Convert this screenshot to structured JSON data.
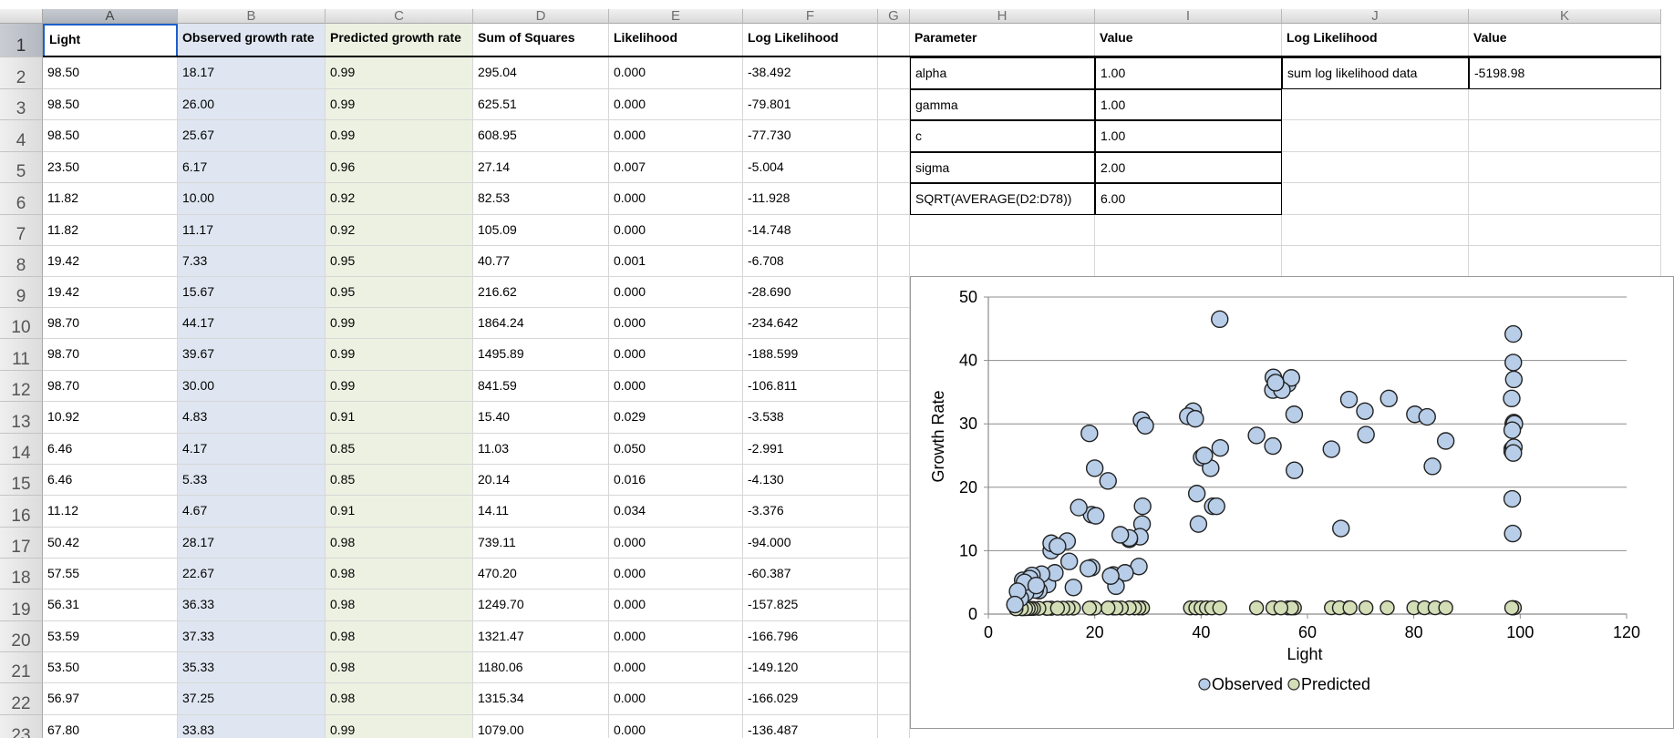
{
  "columns": [
    "A",
    "B",
    "C",
    "D",
    "E",
    "F",
    "G",
    "H",
    "I",
    "J",
    "K"
  ],
  "row_numbers": [
    "1",
    "2",
    "3",
    "4",
    "5",
    "6",
    "7",
    "8",
    "9",
    "10",
    "11",
    "12",
    "13",
    "14",
    "15",
    "16",
    "17",
    "18",
    "19",
    "20",
    "21",
    "22",
    "23"
  ],
  "headers": [
    "Light",
    "Observed growth rate",
    "Predicted growth rate",
    "Sum of Squares",
    "Likelihood",
    "Log Likelihood"
  ],
  "rows": [
    [
      "98.50",
      "18.17",
      "0.99",
      "295.04",
      "0.000",
      "-38.492"
    ],
    [
      "98.50",
      "26.00",
      "0.99",
      "625.51",
      "0.000",
      "-79.801"
    ],
    [
      "98.50",
      "25.67",
      "0.99",
      "608.95",
      "0.000",
      "-77.730"
    ],
    [
      "23.50",
      "6.17",
      "0.96",
      "27.14",
      "0.007",
      "-5.004"
    ],
    [
      "11.82",
      "10.00",
      "0.92",
      "82.53",
      "0.000",
      "-11.928"
    ],
    [
      "11.82",
      "11.17",
      "0.92",
      "105.09",
      "0.000",
      "-14.748"
    ],
    [
      "19.42",
      "7.33",
      "0.95",
      "40.77",
      "0.001",
      "-6.708"
    ],
    [
      "19.42",
      "15.67",
      "0.95",
      "216.62",
      "0.000",
      "-28.690"
    ],
    [
      "98.70",
      "44.17",
      "0.99",
      "1864.24",
      "0.000",
      "-234.642"
    ],
    [
      "98.70",
      "39.67",
      "0.99",
      "1495.89",
      "0.000",
      "-188.599"
    ],
    [
      "98.70",
      "30.00",
      "0.99",
      "841.59",
      "0.000",
      "-106.811"
    ],
    [
      "10.92",
      "4.83",
      "0.91",
      "15.40",
      "0.029",
      "-3.538"
    ],
    [
      "6.46",
      "4.17",
      "0.85",
      "11.03",
      "0.050",
      "-2.991"
    ],
    [
      "6.46",
      "5.33",
      "0.85",
      "20.14",
      "0.016",
      "-4.130"
    ],
    [
      "11.12",
      "4.67",
      "0.91",
      "14.11",
      "0.034",
      "-3.376"
    ],
    [
      "50.42",
      "28.17",
      "0.98",
      "739.11",
      "0.000",
      "-94.000"
    ],
    [
      "57.55",
      "22.67",
      "0.98",
      "470.20",
      "0.000",
      "-60.387"
    ],
    [
      "56.31",
      "36.33",
      "0.98",
      "1249.70",
      "0.000",
      "-157.825"
    ],
    [
      "53.59",
      "37.33",
      "0.98",
      "1321.47",
      "0.000",
      "-166.796"
    ],
    [
      "53.50",
      "35.33",
      "0.98",
      "1180.06",
      "0.000",
      "-149.120"
    ],
    [
      "56.97",
      "37.25",
      "0.98",
      "1315.34",
      "0.000",
      "-166.029"
    ],
    [
      "67.80",
      "33.83",
      "0.99",
      "1079.00",
      "0.000",
      "-136.487"
    ]
  ],
  "param_table": {
    "header_param": "Parameter",
    "header_value": "Value",
    "rows": [
      {
        "name": "alpha",
        "value": "1.00"
      },
      {
        "name": "gamma",
        "value": "1.00"
      },
      {
        "name": "c",
        "value": "1.00"
      },
      {
        "name": "sigma",
        "value": "2.00"
      },
      {
        "name": "SQRT(AVERAGE(D2:D78))",
        "value": "6.00"
      }
    ]
  },
  "ll_table": {
    "header_label": "Log Likelihood",
    "header_value": "Value",
    "label": "sum log likelihood data",
    "value": "-5198.98"
  },
  "colors": {
    "observed": "#b7cde8",
    "predicted": "#d3deb6",
    "blue_column": "#dfe6f1",
    "green_column": "#edf1e2",
    "selection": "#1c5fc9"
  },
  "chart_data": {
    "type": "scatter",
    "xlabel": "Light",
    "ylabel": "Growth Rate",
    "xlim": [
      0,
      120
    ],
    "ylim": [
      0,
      50
    ],
    "xticks": [
      0,
      20,
      40,
      60,
      80,
      100,
      120
    ],
    "yticks": [
      0,
      10,
      20,
      30,
      40,
      50
    ],
    "grid": "horizontal",
    "legend": "bottom",
    "series": [
      {
        "name": "Observed",
        "x": [
          98.5,
          98.5,
          98.5,
          23.5,
          11.82,
          11.82,
          19.42,
          19.42,
          98.7,
          98.7,
          98.7,
          10.92,
          6.46,
          6.46,
          11.12,
          50.42,
          57.55,
          56.31,
          53.59,
          53.5,
          56.97,
          67.8,
          43.5,
          38.5,
          40.1,
          41.8,
          39.2,
          39.5,
          42.2,
          43.6,
          37.5,
          38.9,
          40.6,
          42.9,
          28.8,
          29.5,
          28.9,
          28.5,
          29.0,
          28.3,
          26.5,
          25.7,
          24.0,
          23.0,
          22.5,
          20.2,
          20.0,
          19.0,
          18.8,
          17.0,
          16.0,
          15.2,
          14.8,
          13.0,
          12.5,
          10.0,
          9.5,
          8.8,
          8.2,
          7.8,
          7.5,
          7.0,
          6.8,
          6.0,
          5.5,
          5.0,
          9.0,
          26.5,
          24.8,
          53.5,
          57.5,
          55.2,
          54.0,
          64.5,
          66.3,
          70.8,
          71.0,
          75.3,
          80.2,
          82.5,
          83.5,
          86.0,
          98.8,
          98.8,
          98.7,
          98.4,
          98.9,
          98.6,
          98.8,
          98.5
        ],
        "y": [
          18.17,
          26.0,
          25.67,
          6.17,
          10.0,
          11.17,
          7.33,
          15.67,
          44.17,
          39.67,
          30.0,
          4.83,
          4.17,
          5.33,
          4.67,
          28.17,
          22.67,
          36.33,
          37.33,
          35.33,
          37.25,
          33.83,
          46.5,
          32.0,
          24.7,
          23.0,
          19.0,
          14.2,
          17.0,
          26.2,
          31.2,
          30.8,
          25.0,
          17.0,
          30.6,
          29.7,
          14.2,
          12.2,
          17.0,
          7.5,
          11.8,
          6.5,
          4.4,
          6.0,
          21.0,
          15.5,
          23.0,
          28.5,
          7.2,
          16.8,
          4.2,
          8.3,
          11.5,
          10.7,
          6.5,
          6.3,
          3.7,
          3.8,
          6.1,
          5.6,
          4.5,
          3.3,
          5.0,
          2.5,
          3.6,
          1.5,
          4.5,
          12.0,
          12.5,
          26.5,
          31.5,
          35.3,
          36.5,
          26.0,
          13.5,
          32.0,
          28.3,
          34.0,
          31.5,
          31.1,
          23.3,
          27.3,
          30.2,
          26.3,
          25.4,
          34.0,
          30.0,
          12.7,
          37.0,
          29.0
        ]
      },
      {
        "name": "Predicted",
        "x": [
          98.5,
          98.5,
          98.5,
          23.5,
          11.82,
          11.82,
          19.42,
          19.42,
          98.7,
          98.7,
          98.7,
          10.92,
          6.46,
          6.46,
          11.12,
          50.42,
          57.55,
          56.31,
          53.59,
          53.5,
          56.97,
          67.8,
          38.0,
          39.0,
          40.0,
          41.0,
          42.0,
          43.5,
          29.0,
          28.3,
          27.5,
          26.5,
          25.0,
          24.0,
          22.5,
          20.0,
          19.0,
          16.0,
          15.0,
          14.0,
          13.0,
          9.5,
          8.5,
          8.0,
          7.5,
          7.0,
          6.2,
          5.2,
          57.0,
          55.0,
          64.5,
          66.0,
          68.0,
          71.0,
          75.0,
          80.0,
          82.0,
          84.0,
          86.0,
          98.6,
          98.9,
          98.4
        ],
        "y": [
          0.99,
          0.99,
          0.99,
          0.96,
          0.92,
          0.92,
          0.95,
          0.95,
          0.99,
          0.99,
          0.99,
          0.91,
          0.85,
          0.85,
          0.91,
          0.98,
          0.98,
          0.98,
          0.98,
          0.98,
          0.98,
          0.99,
          0.98,
          0.98,
          0.98,
          0.98,
          0.98,
          0.98,
          0.97,
          0.97,
          0.97,
          0.97,
          0.96,
          0.96,
          0.96,
          0.95,
          0.95,
          0.94,
          0.94,
          0.93,
          0.93,
          0.9,
          0.89,
          0.88,
          0.87,
          0.86,
          0.85,
          0.83,
          0.98,
          0.98,
          0.99,
          0.99,
          0.99,
          0.99,
          0.99,
          0.99,
          0.99,
          0.99,
          0.99,
          0.99,
          0.99,
          0.99
        ]
      }
    ]
  }
}
